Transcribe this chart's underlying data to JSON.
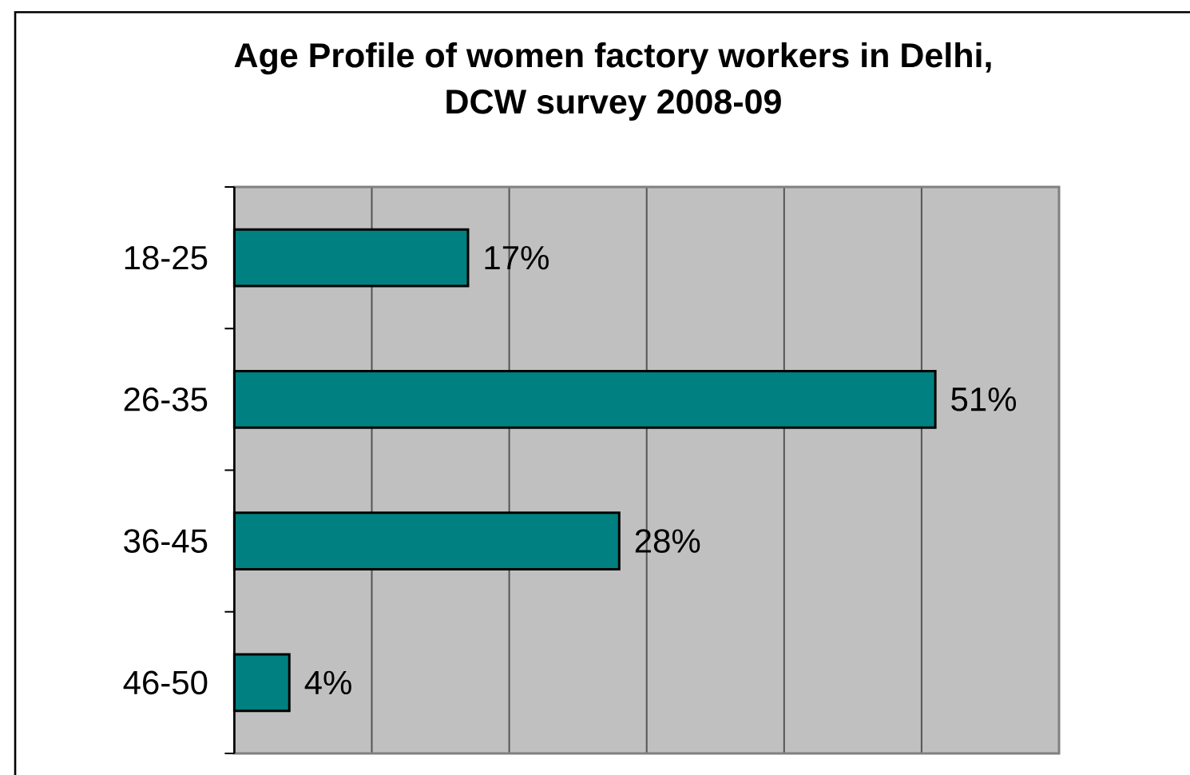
{
  "chart_data": {
    "type": "bar",
    "orientation": "horizontal",
    "title": "Age Profile of women factory workers in Delhi, DCW survey 2008-09",
    "categories": [
      "18-25",
      "26-35",
      "36-45",
      "46-50"
    ],
    "values": [
      17,
      51,
      28,
      4
    ],
    "value_labels": [
      "17%",
      "51%",
      "28%",
      "4%"
    ],
    "color": "#008080",
    "xlim": [
      0,
      60
    ],
    "xticks": [
      {
        "value": 0,
        "label": null
      },
      {
        "value": 10,
        "label": null
      },
      {
        "value": 20,
        "label": null
      },
      {
        "value": 30,
        "label": null
      },
      {
        "value": 40,
        "label": null
      },
      {
        "value": 50,
        "label": null
      },
      {
        "value": 60,
        "label": null
      }
    ],
    "grid": "x",
    "tick_labels": "y"
  }
}
